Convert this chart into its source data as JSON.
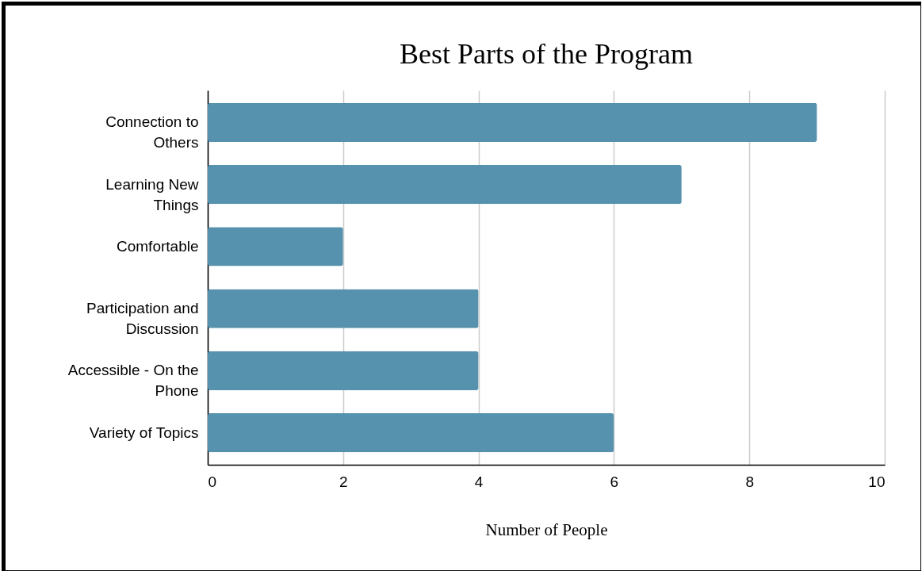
{
  "chart_data": {
    "type": "bar",
    "orientation": "horizontal",
    "title": "Best Parts of the Program",
    "xlabel": "Number of People",
    "categories": [
      "Connection to Others",
      "Learning New Things",
      "Comfortable",
      "Participation and Discussion",
      "Accessible - On the Phone",
      "Variety of Topics"
    ],
    "values": [
      9,
      7,
      2,
      4,
      4,
      6
    ],
    "color": "#5691ad",
    "xlim": [
      0,
      10
    ],
    "xticks": [
      0,
      2,
      4,
      6,
      8,
      10
    ],
    "grid": "x"
  }
}
